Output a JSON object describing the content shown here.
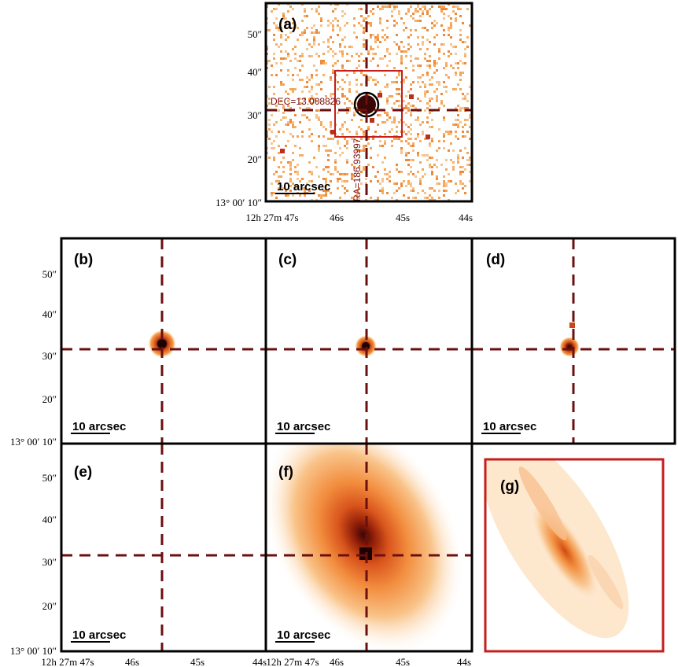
{
  "colors": {
    "crosshair": "#6b0f0f",
    "box": "#c41e1e",
    "frame": "#000000",
    "emission_low": "#f4a050",
    "emission_high": "#3a0606"
  },
  "axis": {
    "y_ticks": [
      "13° 00′ 10″",
      "20″",
      "30″",
      "40″",
      "50″"
    ],
    "x_ticks": [
      "12h 27m 47s",
      "46s",
      "45s",
      "44s"
    ],
    "x_ticks_left_panel": [
      "12h 27m 47s",
      "46s",
      "45s",
      "44s"
    ]
  },
  "scale_bar_label": "10 arcsec",
  "annotations": {
    "dec_label": "DEC=13.008826",
    "ra_label": "RA=186.93997"
  },
  "panels": [
    {
      "id": "a",
      "label": "(a)"
    },
    {
      "id": "b",
      "label": "(b)"
    },
    {
      "id": "c",
      "label": "(c)"
    },
    {
      "id": "d",
      "label": "(d)"
    },
    {
      "id": "e",
      "label": "(e)"
    },
    {
      "id": "f",
      "label": "(f)"
    },
    {
      "id": "g",
      "label": "(g)"
    }
  ]
}
